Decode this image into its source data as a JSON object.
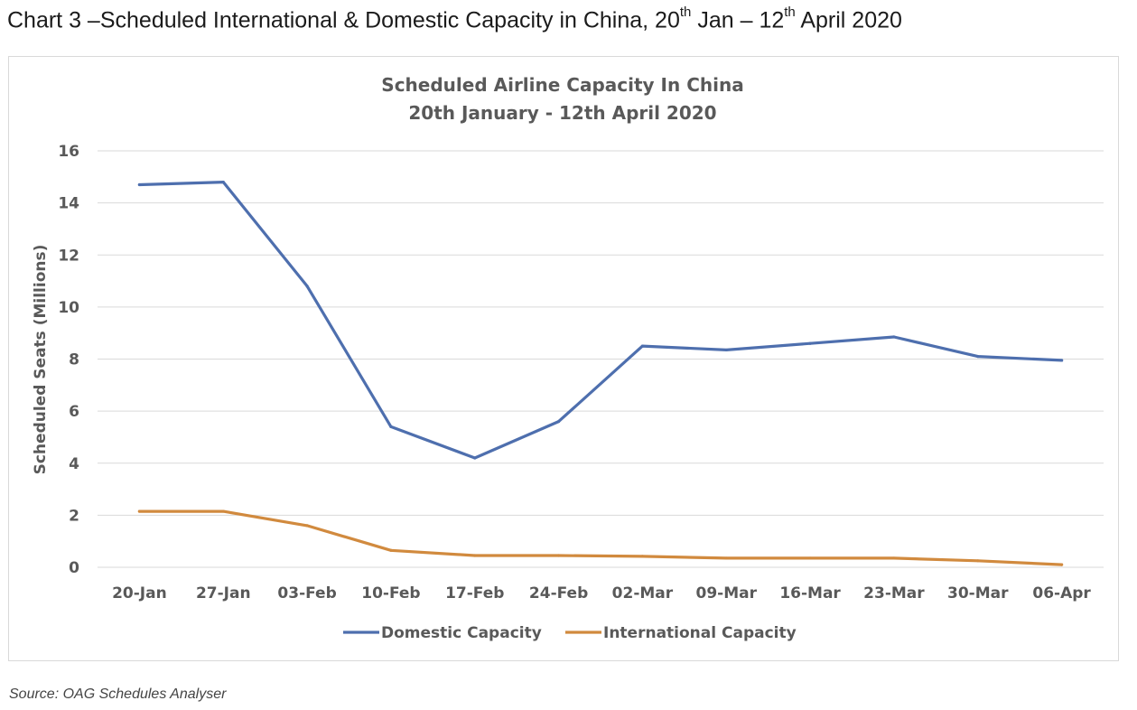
{
  "page": {
    "heading": {
      "part1": "Chart 3 –Scheduled  International & Domestic Capacity in China, 20",
      "sup1": "th",
      "part2": " Jan – 12",
      "sup2": "th",
      "part3": " April 2020"
    },
    "source": "Source: OAG Schedules Analyser"
  },
  "chart_data": {
    "type": "line",
    "title": "Scheduled Airline Capacity In China",
    "subtitle": "20th January - 12th April 2020",
    "ylabel": "Scheduled Seats (Millions)",
    "xlabel": "",
    "ylim": [
      0,
      16
    ],
    "yticks": [
      0,
      2,
      4,
      6,
      8,
      10,
      12,
      14,
      16
    ],
    "grid": true,
    "legend_position": "bottom",
    "categories": [
      "20-Jan",
      "27-Jan",
      "03-Feb",
      "10-Feb",
      "17-Feb",
      "24-Feb",
      "02-Mar",
      "09-Mar",
      "16-Mar",
      "23-Mar",
      "30-Mar",
      "06-Apr"
    ],
    "series": [
      {
        "name": "Domestic Capacity",
        "color": "#4e6fae",
        "values": [
          14.7,
          14.8,
          10.8,
          5.4,
          4.2,
          5.6,
          8.5,
          8.35,
          8.6,
          8.85,
          8.1,
          7.95
        ]
      },
      {
        "name": "International Capacity",
        "color": "#d18a3e",
        "values": [
          2.15,
          2.15,
          1.6,
          0.65,
          0.45,
          0.45,
          0.42,
          0.35,
          0.35,
          0.35,
          0.25,
          0.1
        ]
      }
    ]
  }
}
